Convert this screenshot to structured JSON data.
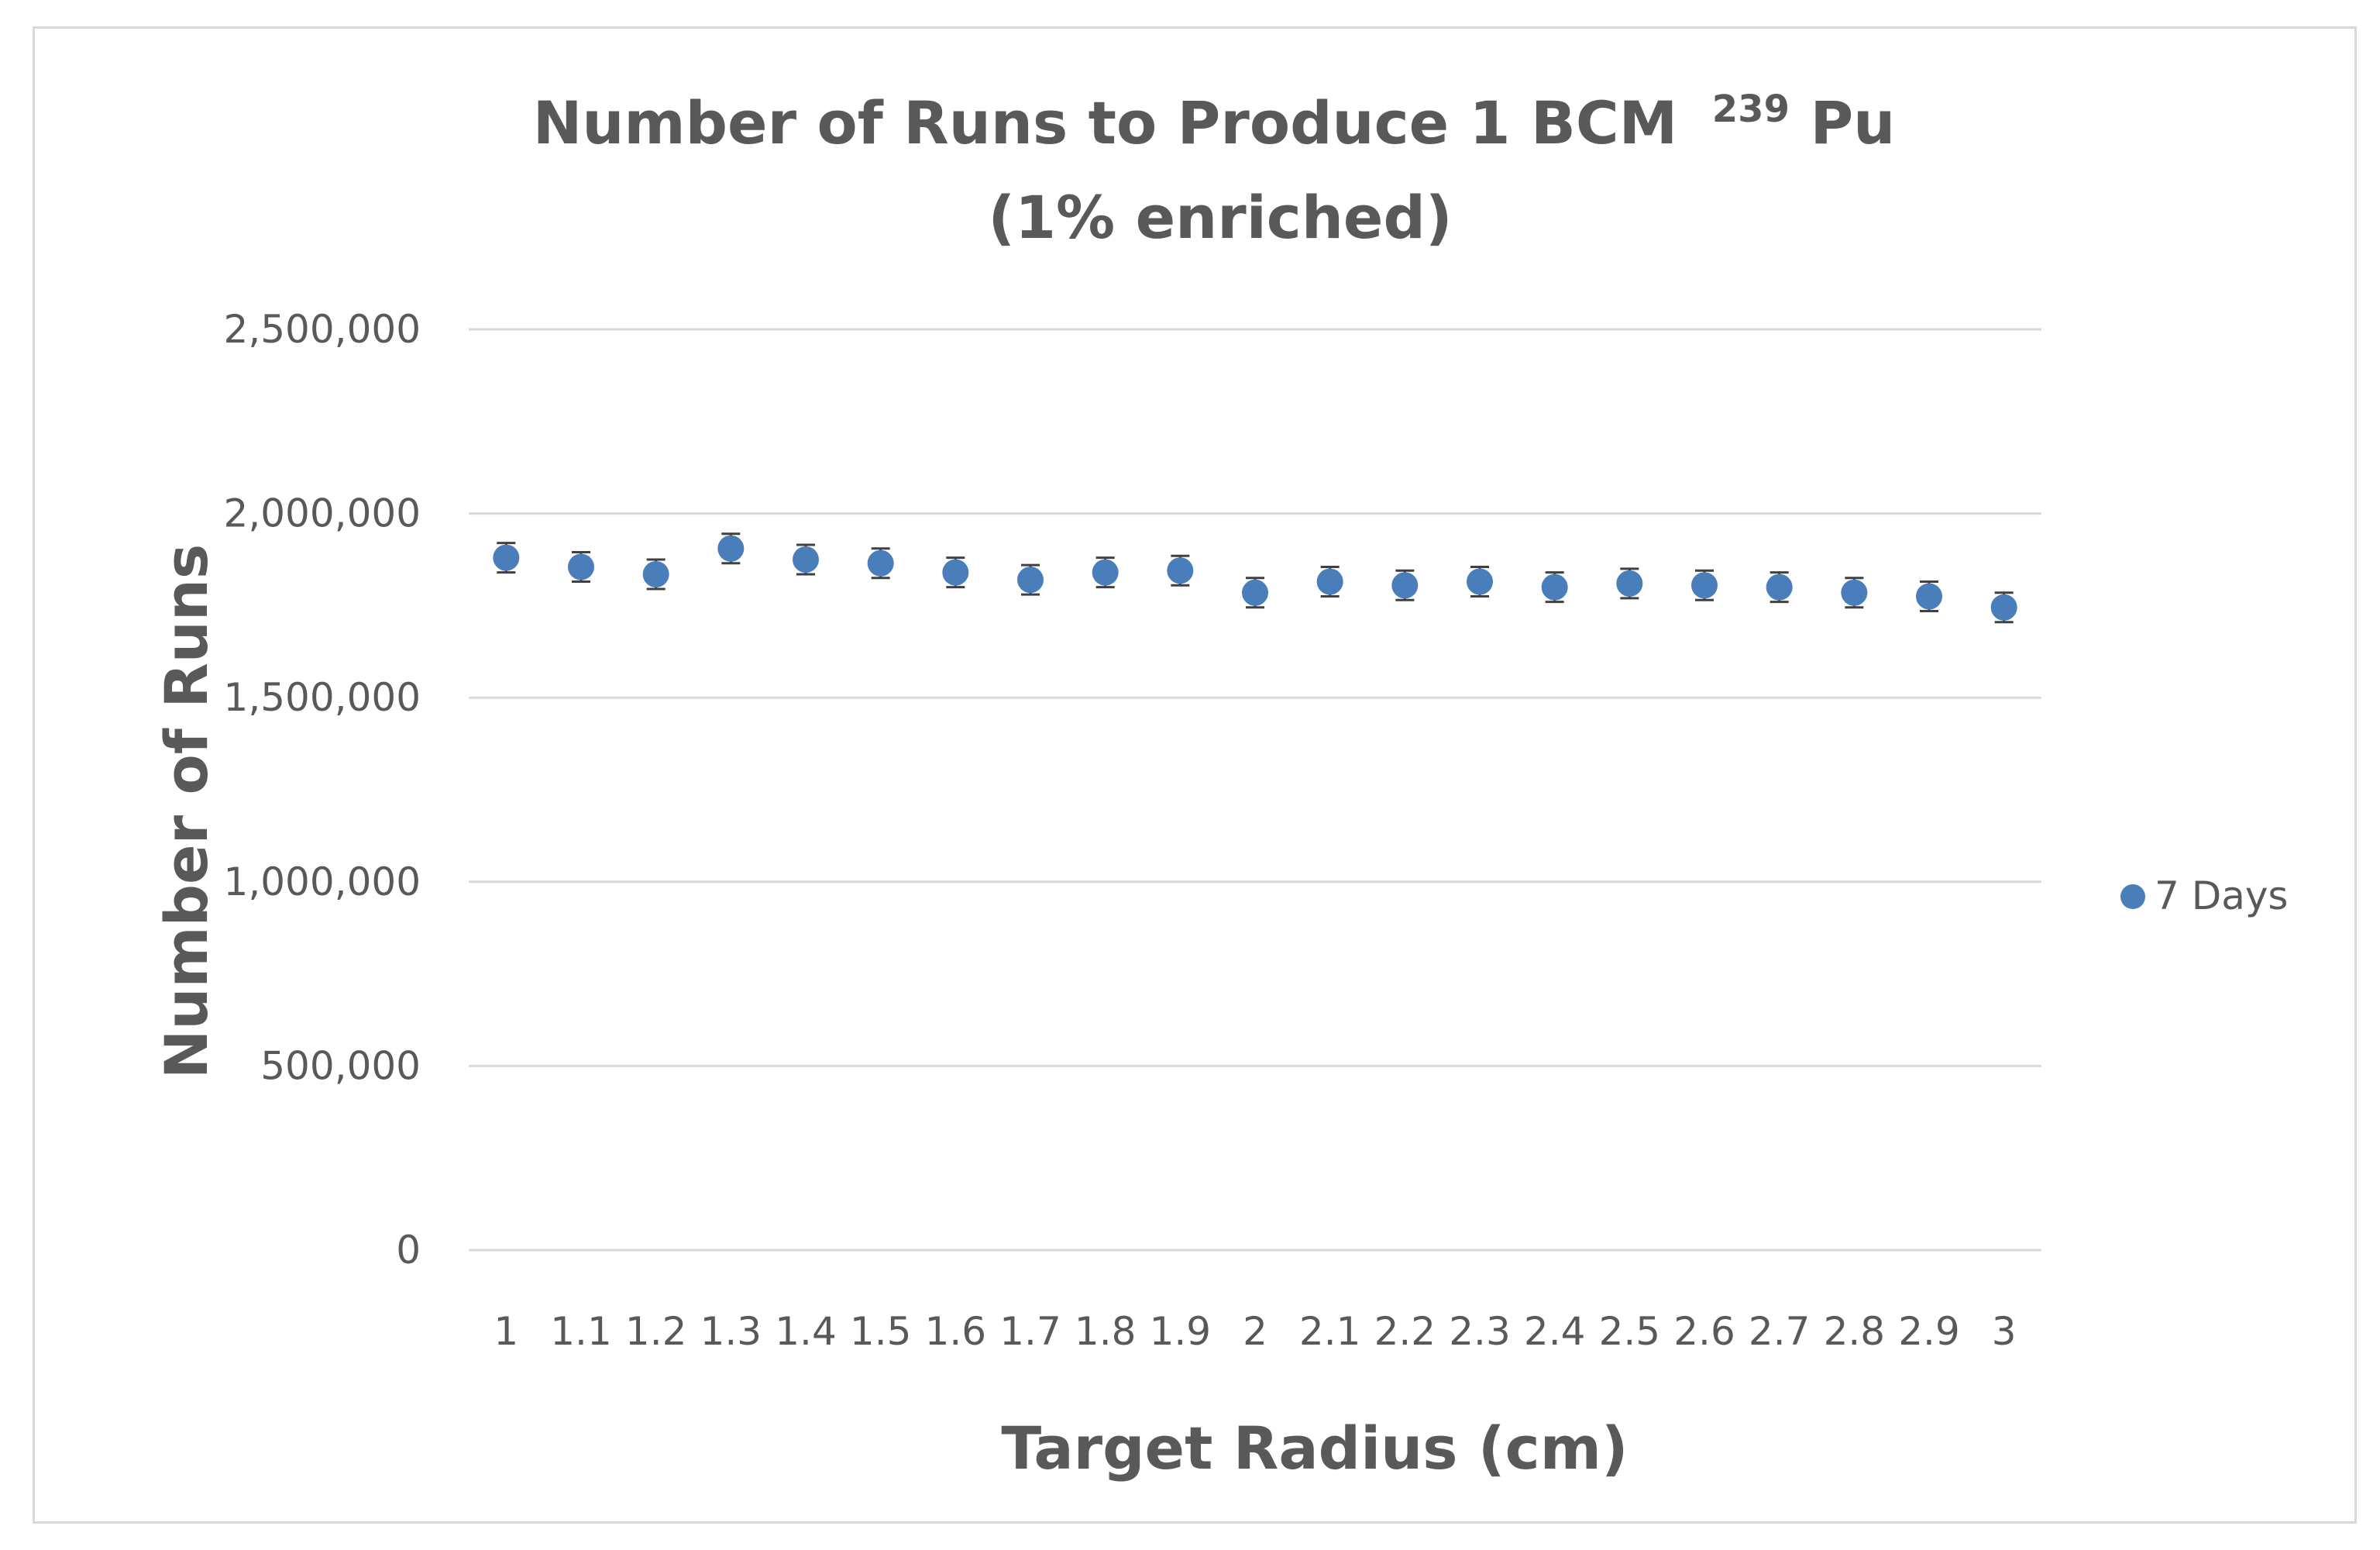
{
  "chart_data": {
    "type": "scatter",
    "title": "Number of Runs to Produce 1 BCM",
    "title_superscript": "239",
    "title_element": "Pu",
    "subtitle": "(1% enriched)",
    "xlabel": "Target Radius (cm)",
    "ylabel": "Number of Runs",
    "categories": [
      "1",
      "1.1",
      "1.2",
      "1.3",
      "1.4",
      "1.5",
      "1.6",
      "1.7",
      "1.8",
      "1.9",
      "2",
      "2.1",
      "2.2",
      "2.3",
      "2.4",
      "2.5",
      "2.6",
      "2.7",
      "2.8",
      "2.9",
      "3"
    ],
    "y_ticks": [
      "0",
      "500,000",
      "1,000,000",
      "1,500,000",
      "2,000,000",
      "2,500,000"
    ],
    "ylim": [
      0,
      2500000
    ],
    "grid": true,
    "legend_position": "right",
    "series": [
      {
        "name": "7 Days",
        "color": "#4a7ebb",
        "marker": "circle",
        "values": [
          1880000,
          1855000,
          1835000,
          1905000,
          1875000,
          1865000,
          1840000,
          1820000,
          1840000,
          1845000,
          1785000,
          1815000,
          1805000,
          1815000,
          1800000,
          1810000,
          1805000,
          1800000,
          1785000,
          1775000,
          1745000
        ],
        "error": [
          40000,
          40000,
          40000,
          40000,
          40000,
          40000,
          40000,
          40000,
          40000,
          40000,
          40000,
          40000,
          40000,
          40000,
          40000,
          40000,
          40000,
          40000,
          40000,
          40000,
          40000
        ]
      }
    ],
    "error_bar_color": "#404040"
  }
}
